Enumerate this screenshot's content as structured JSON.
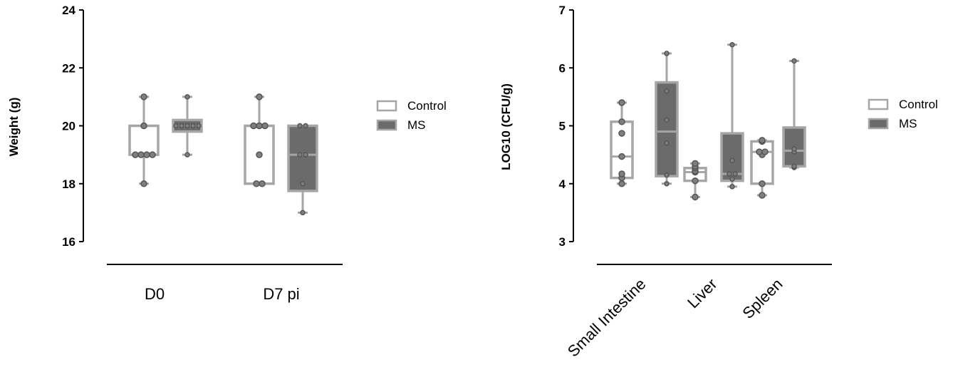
{
  "colors": {
    "control_stroke": "#a6a6a6",
    "control_fill": "#ffffff",
    "ms_fill": "#6b6b6b",
    "ms_stroke": "#a6a6a6",
    "point_fill": "#7f7f7f",
    "point_stroke": "#555555",
    "axis": "#000000"
  },
  "chart_data": [
    {
      "type": "box",
      "ylabel": "Weight (g)",
      "xlabel": "",
      "ylim": [
        16,
        24
      ],
      "yticks": [
        16,
        18,
        20,
        22,
        24
      ],
      "categories": [
        "D0",
        "D7 pi"
      ],
      "legend": {
        "position": "right",
        "entries": [
          "Control",
          "MS"
        ]
      },
      "series": [
        {
          "name": "Control",
          "groups": [
            {
              "category": "D0",
              "min": 18,
              "q1": 19,
              "median": 19,
              "q3": 20,
              "max": 21,
              "points": [
                18,
                19,
                19,
                19,
                19,
                20,
                21
              ]
            },
            {
              "category": "D7 pi",
              "min": 18,
              "q1": 18,
              "median": 20,
              "q3": 20,
              "max": 21,
              "points": [
                18,
                18,
                19,
                20,
                20,
                20,
                21
              ]
            }
          ]
        },
        {
          "name": "MS",
          "groups": [
            {
              "category": "D0",
              "min": 19,
              "q1": 19.8,
              "median": 20,
              "q3": 20.2,
              "max": 21,
              "points": [
                19,
                20,
                20,
                20,
                20,
                20,
                21
              ]
            },
            {
              "category": "D7 pi",
              "min": 17,
              "q1": 17.75,
              "median": 19,
              "q3": 20,
              "max": 20,
              "points": [
                17,
                18,
                19,
                19,
                20,
                20
              ]
            }
          ]
        }
      ]
    },
    {
      "type": "box",
      "ylabel": "LOG10 (CFU/g)",
      "xlabel": "",
      "ylim": [
        3,
        7
      ],
      "yticks": [
        3,
        4,
        5,
        6,
        7
      ],
      "categories": [
        "Small Intestine",
        "Liver",
        "Spleen"
      ],
      "legend": {
        "position": "right",
        "entries": [
          "Control",
          "MS"
        ]
      },
      "series": [
        {
          "name": "Control",
          "groups": [
            {
              "category": "Small Intestine",
              "min": 4.0,
              "q1": 4.1,
              "median": 4.47,
              "q3": 5.07,
              "max": 5.4,
              "points": [
                4.0,
                4.1,
                4.17,
                4.47,
                4.87,
                5.07,
                5.4
              ]
            },
            {
              "category": "Liver",
              "min": 3.77,
              "q1": 4.05,
              "median": 4.2,
              "q3": 4.27,
              "max": 4.35,
              "points": [
                3.77,
                4.05,
                4.2,
                4.22,
                4.27,
                4.3,
                4.35
              ]
            },
            {
              "category": "Spleen",
              "min": 3.8,
              "q1": 4.0,
              "median": 4.55,
              "q3": 4.73,
              "max": 4.75,
              "points": [
                3.8,
                4.0,
                4.5,
                4.55,
                4.55,
                4.73,
                4.75
              ]
            }
          ]
        },
        {
          "name": "MS",
          "groups": [
            {
              "category": "Small Intestine",
              "min": 4.0,
              "q1": 4.13,
              "median": 4.9,
              "q3": 5.75,
              "max": 6.25,
              "points": [
                4.0,
                4.15,
                4.7,
                5.1,
                5.6,
                6.25
              ]
            },
            {
              "category": "Liver",
              "min": 3.95,
              "q1": 4.05,
              "median": 4.17,
              "q3": 4.87,
              "max": 6.4,
              "points": [
                3.95,
                4.08,
                4.17,
                4.17,
                4.4,
                6.4
              ]
            },
            {
              "category": "Spleen",
              "min": 4.28,
              "q1": 4.3,
              "median": 4.57,
              "q3": 4.97,
              "max": 6.12,
              "points": [
                4.28,
                4.3,
                4.55,
                4.6,
                6.12
              ]
            }
          ]
        }
      ]
    }
  ]
}
